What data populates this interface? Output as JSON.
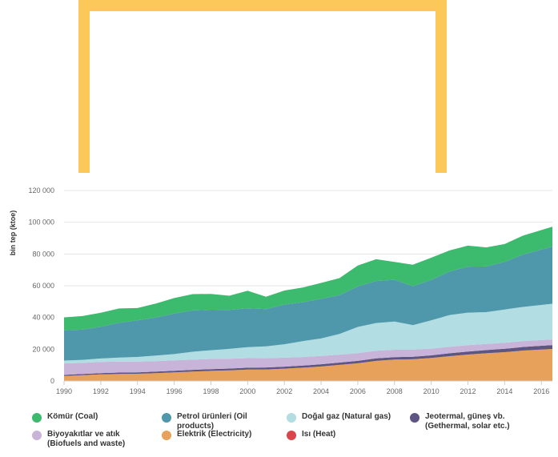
{
  "chart_data": {
    "type": "area",
    "stacked": true,
    "title": "",
    "xlabel": "",
    "ylabel": "bin tep (ktoe)",
    "ylim": [
      0,
      120000
    ],
    "yticks": [
      0,
      20000,
      40000,
      60000,
      80000,
      100000,
      120000
    ],
    "ytick_labels": [
      "0",
      "20 000",
      "40 000",
      "60 000",
      "80 000",
      "100 000",
      "120 000"
    ],
    "xlim": [
      1990,
      2016.6
    ],
    "xticks": [
      1990,
      1992,
      1994,
      1996,
      1998,
      2000,
      2002,
      2004,
      2006,
      2008,
      2010,
      2012,
      2014,
      2016
    ],
    "grid": true,
    "legend_position": "bottom",
    "x": [
      1990,
      1991,
      1992,
      1993,
      1994,
      1995,
      1996,
      1997,
      1998,
      1999,
      2000,
      2001,
      2002,
      2003,
      2004,
      2005,
      2006,
      2007,
      2008,
      2009,
      2010,
      2011,
      2012,
      2013,
      2014,
      2015,
      2016.6
    ],
    "series": [
      {
        "name": "Isı (Heat)",
        "color": "#d9454a",
        "values": [
          150,
          150,
          150,
          150,
          150,
          150,
          150,
          150,
          150,
          150,
          150,
          150,
          150,
          150,
          150,
          150,
          150,
          150,
          150,
          150,
          150,
          150,
          150,
          150,
          150,
          150,
          150
        ]
      },
      {
        "name": "Elektrik (Electricity)",
        "color": "#e8a15a",
        "values": [
          3000,
          3500,
          4000,
          4300,
          4400,
          4800,
          5300,
          5800,
          6200,
          6500,
          7000,
          7100,
          7600,
          8200,
          9000,
          10000,
          11000,
          12500,
          13300,
          13500,
          14300,
          15500,
          16500,
          17300,
          18000,
          19000,
          20000
        ]
      },
      {
        "name": "Jeotermal, güneş vb. (Gethermal, solar etc.)",
        "color": "#5e5583",
        "values": [
          700,
          750,
          800,
          850,
          900,
          950,
          1000,
          1050,
          1100,
          1150,
          1200,
          1250,
          1300,
          1350,
          1400,
          1450,
          1500,
          1550,
          1600,
          1650,
          1700,
          1800,
          1900,
          2000,
          2100,
          2300,
          2500
        ]
      },
      {
        "name": "Biyoyakıtlar ve atık (Biofuels and waste)",
        "color": "#c8b3d9",
        "values": [
          7200,
          7000,
          7000,
          6900,
          6800,
          6600,
          6500,
          6400,
          6400,
          6200,
          6000,
          5800,
          5600,
          5400,
          5200,
          5000,
          4900,
          4800,
          4600,
          4400,
          4200,
          4100,
          4000,
          3900,
          3800,
          3700,
          3500
        ]
      },
      {
        "name": "Doğal gaz (Natural gas)",
        "color": "#b1dde3",
        "values": [
          1800,
          1900,
          2200,
          2500,
          2900,
          3500,
          4000,
          5000,
          5500,
          6200,
          7000,
          7500,
          8500,
          10000,
          11000,
          13000,
          16500,
          17500,
          17800,
          15500,
          17800,
          20000,
          20500,
          20000,
          21000,
          21500,
          22500
        ]
      },
      {
        "name": "Petrol ürünleri (Oil products)",
        "color": "#4f97ab",
        "values": [
          19000,
          19000,
          20000,
          22000,
          23000,
          24000,
          25500,
          26000,
          25500,
          24500,
          24500,
          23500,
          25000,
          24500,
          25000,
          24500,
          25500,
          26500,
          26300,
          24500,
          25500,
          27500,
          29000,
          28800,
          30000,
          33000,
          36000
        ]
      },
      {
        "name": "Kömür (Coal)",
        "color": "#3cba6d",
        "values": [
          8200,
          8600,
          8800,
          9000,
          7800,
          8800,
          9800,
          10300,
          10000,
          9000,
          11000,
          7800,
          8800,
          9300,
          10000,
          10700,
          13200,
          13700,
          11300,
          13500,
          14000,
          13200,
          13200,
          12000,
          11200,
          11900,
          12500
        ]
      }
    ]
  },
  "legend": [
    {
      "label": "Kömür (Coal)",
      "color": "#3cba6d"
    },
    {
      "label": "Petrol ürünleri (Oil products)",
      "color": "#4f97ab"
    },
    {
      "label": "Doğal gaz (Natural gas)",
      "color": "#b1dde3"
    },
    {
      "label": "Jeotermal, güneş vb. (Gethermal, solar etc.)",
      "color": "#5e5583"
    },
    {
      "label": "Biyoyakıtlar ve atık (Biofuels and waste)",
      "color": "#c8b3d9"
    },
    {
      "label": "Elektrik (Electricity)",
      "color": "#e8a15a"
    },
    {
      "label": "Isı (Heat)",
      "color": "#d9454a"
    }
  ]
}
